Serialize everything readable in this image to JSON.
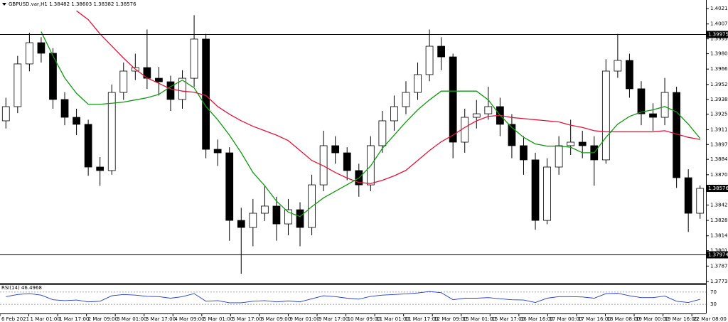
{
  "chart_data": [
    {
      "type": "candlestick",
      "title": "GBPUSD.var,H1 1.38482 1.38603 1.38382 1.38576",
      "open": [
        1.3919,
        1.39319,
        1.39707,
        1.399,
        1.39804,
        1.39384,
        1.39222,
        1.39158,
        1.3877,
        1.38738,
        1.39448,
        1.39642,
        1.39674,
        1.39577,
        1.39545,
        1.39384,
        1.39577,
        1.39933,
        1.38931,
        1.38899,
        1.38285,
        1.38221,
        1.3835,
        1.38415,
        1.38253,
        1.38382,
        1.38221,
        1.38608,
        1.38964,
        1.38899,
        1.38738,
        1.38608,
        1.38964,
        1.3919,
        1.39319,
        1.39448,
        1.3961,
        1.39868,
        1.39771,
        1.38996,
        1.39222,
        1.39254,
        1.39319,
        1.39158,
        1.38964,
        1.38835,
        1.38285,
        1.3877,
        1.38964,
        1.38996,
        1.38964,
        1.38835,
        1.39642,
        1.39739,
        1.39481,
        1.39254,
        1.39222,
        1.39448,
        1.38673,
        1.3835
      ],
      "high": [
        1.394,
        1.3978,
        1.3999,
        1.3995,
        1.3985,
        1.3945,
        1.393,
        1.392,
        1.3886,
        1.3952,
        1.3972,
        1.398,
        1.4002,
        1.3968,
        1.396,
        1.3965,
        1.4015,
        1.3998,
        1.3902,
        1.3895,
        1.384,
        1.3848,
        1.386,
        1.385,
        1.3848,
        1.3845,
        1.387,
        1.391,
        1.3905,
        1.3895,
        1.388,
        1.3905,
        1.3928,
        1.3942,
        1.3955,
        1.3972,
        1.4002,
        1.3995,
        1.398,
        1.393,
        1.3938,
        1.395,
        1.394,
        1.3925,
        1.3905,
        1.389,
        1.3885,
        1.3905,
        1.392,
        1.391,
        1.3905,
        1.3975,
        1.3998,
        1.398,
        1.3955,
        1.3935,
        1.3958,
        1.395,
        1.3875,
        1.38603
      ],
      "low": [
        1.3912,
        1.3926,
        1.3964,
        1.3972,
        1.393,
        1.3915,
        1.3906,
        1.3869,
        1.386,
        1.387,
        1.3938,
        1.3956,
        1.3948,
        1.3942,
        1.3928,
        1.393,
        1.395,
        1.3885,
        1.3878,
        1.381,
        1.378,
        1.3805,
        1.3828,
        1.381,
        1.3815,
        1.3805,
        1.3815,
        1.3855,
        1.388,
        1.3865,
        1.385,
        1.3855,
        1.389,
        1.391,
        1.3925,
        1.3938,
        1.3955,
        1.3965,
        1.3885,
        1.389,
        1.3912,
        1.392,
        1.3905,
        1.3885,
        1.387,
        1.382,
        1.3825,
        1.387,
        1.3888,
        1.3885,
        1.386,
        1.388,
        1.3958,
        1.394,
        1.3915,
        1.391,
        1.3915,
        1.3858,
        1.3818,
        1.383
      ],
      "close": [
        1.39319,
        1.39707,
        1.399,
        1.39804,
        1.39384,
        1.39222,
        1.39158,
        1.3877,
        1.38738,
        1.39448,
        1.39642,
        1.39674,
        1.39577,
        1.39545,
        1.39384,
        1.39577,
        1.39933,
        1.38931,
        1.38899,
        1.38285,
        1.38221,
        1.3835,
        1.38415,
        1.38253,
        1.38382,
        1.38221,
        1.38608,
        1.38964,
        1.38899,
        1.38738,
        1.38608,
        1.38964,
        1.3919,
        1.39319,
        1.39448,
        1.3961,
        1.39868,
        1.39771,
        1.38996,
        1.39222,
        1.39254,
        1.39319,
        1.39158,
        1.38964,
        1.38835,
        1.38285,
        1.3877,
        1.38964,
        1.38996,
        1.38964,
        1.38835,
        1.39642,
        1.39739,
        1.39481,
        1.39254,
        1.39222,
        1.39448,
        1.38673,
        1.3835,
        1.38576
      ],
      "up_color": "#ffffff",
      "down_color": "#000000",
      "wick_color": "#000000",
      "series": [
        {
          "color": "#e0143c",
          "values": [
            null,
            null,
            null,
            null,
            null,
            null,
            1.4019,
            1.4011,
            1.3998,
            1.3987,
            1.3976,
            1.3966,
            1.3958,
            1.3953,
            1.3948,
            1.3946,
            1.3945,
            1.3942,
            1.3932,
            1.3925,
            1.3919,
            1.3914,
            1.391,
            1.3906,
            1.3901,
            1.3892,
            1.3883,
            1.3878,
            1.3872,
            1.3867,
            1.3863,
            1.3862,
            1.3865,
            1.3869,
            1.3874,
            1.3883,
            1.3892,
            1.39,
            1.3906,
            1.3913,
            1.3919,
            1.3923,
            1.3924,
            1.3922,
            1.3921,
            1.392,
            1.3919,
            1.3918,
            1.3915,
            1.3913,
            1.391,
            1.3909,
            1.3909,
            1.3909,
            1.3909,
            1.3909,
            1.391,
            1.3907,
            1.3904,
            1.3902
          ]
        },
        {
          "color": "#139613",
          "values": [
            null,
            null,
            null,
            1.4,
            1.3978,
            1.3958,
            1.3944,
            1.3934,
            1.3934,
            1.3935,
            1.3936,
            1.3938,
            1.394,
            1.3943,
            1.395,
            1.3956,
            1.3949,
            1.3932,
            1.392,
            1.3906,
            1.389,
            1.3872,
            1.386,
            1.3846,
            1.3836,
            1.3832,
            1.3841,
            1.3849,
            1.3855,
            1.3861,
            1.3867,
            1.3878,
            1.3894,
            1.3906,
            1.3918,
            1.3929,
            1.3938,
            1.3946,
            1.3946,
            1.3946,
            1.3946,
            1.3938,
            1.3924,
            1.3913,
            1.3904,
            1.3898,
            1.3896,
            1.3896,
            1.3895,
            1.389,
            1.389,
            1.3904,
            1.3916,
            1.3923,
            1.3927,
            1.3929,
            1.3932,
            1.3927,
            1.3916,
            1.3903
          ]
        }
      ],
      "hlines": [
        1.39975,
        1.37974
      ],
      "last_price": 1.38576,
      "ylim": [
        1.37717,
        1.40288
      ],
      "yticks": [
        {
          "value": 1.4021,
          "label": "1.40210"
        },
        {
          "value": 1.4007,
          "label": "1.40070"
        },
        1.39935,
        {
          "value": 1.398,
          "label": "1.39800"
        },
        {
          "value": 1.3966,
          "label": "1.39660"
        },
        {
          "value": 1.3952,
          "label": "1.39520"
        },
        1.39385,
        {
          "value": 1.3925,
          "label": "1.39250"
        },
        {
          "value": 1.3911,
          "label": "1.39110"
        },
        1.38975,
        {
          "value": 1.3884,
          "label": "1.38840"
        },
        {
          "value": 1.387,
          "label": "1.38700"
        },
        1.38565,
        1.38425,
        1.38285,
        1.38145,
        {
          "value": 1.3801,
          "label": "1.38010"
        },
        {
          "value": 1.3787,
          "label": "1.37870"
        },
        {
          "value": 1.3773,
          "label": "1.37730"
        }
      ],
      "xlim": [
        0,
        60
      ],
      "xticks": [
        {
          "value": 0,
          "label": "6 Feb 2021"
        },
        {
          "value": 2.45,
          "label": "1 Mar 01:00"
        },
        {
          "value": 4.9,
          "label": "1 Mar 17:00"
        },
        {
          "value": 7.35,
          "label": "2 Mar 09:00"
        },
        {
          "value": 9.8,
          "label": "3 Mar 01:00"
        },
        {
          "value": 12.25,
          "label": "3 Mar 17:00"
        },
        {
          "value": 14.7,
          "label": "4 Mar 09:00"
        },
        {
          "value": 17.15,
          "label": "5 Mar 01:00"
        },
        {
          "value": 19.6,
          "label": "5 Mar 17:00"
        },
        {
          "value": 22.05,
          "label": "8 Mar 09:00"
        },
        {
          "value": 24.5,
          "label": "9 Mar 01:00"
        },
        {
          "value": 26.95,
          "label": "9 Mar 17:00"
        },
        {
          "value": 29.4,
          "label": "10 Mar 09:00"
        },
        {
          "value": 31.85,
          "label": "11 Mar 01:00"
        },
        {
          "value": 34.3,
          "label": "11 Mar 17:00"
        },
        {
          "value": 36.75,
          "label": "12 Mar 09:00"
        },
        {
          "value": 39.2,
          "label": "15 Mar 01:00"
        },
        {
          "value": 41.65,
          "label": "15 Mar 17:00"
        },
        {
          "value": 44.1,
          "label": "16 Mar 16:00"
        },
        {
          "value": 46.55,
          "label": "17 Mar 00:00"
        },
        {
          "value": 49,
          "label": "17 Mar 16:00"
        },
        {
          "value": 51.45,
          "label": "18 Mar 08:00"
        },
        {
          "value": 53.9,
          "label": "19 Mar 00:00"
        },
        {
          "value": 56.35,
          "label": "19 Mar 16:00"
        },
        {
          "value": 58.8,
          "label": "22 Mar 08:00"
        }
      ]
    },
    {
      "type": "line",
      "title": "RSI(14) 46.4968",
      "color": "#2038c8",
      "values": [
        55,
        62,
        65,
        60,
        45,
        42,
        44,
        38,
        40,
        58,
        62,
        60,
        56,
        55,
        50,
        55,
        65,
        40,
        42,
        35,
        35,
        40,
        42,
        38,
        41,
        38,
        48,
        58,
        55,
        50,
        47,
        56,
        60,
        62,
        64,
        67,
        72,
        68,
        45,
        50,
        50,
        52,
        48,
        45,
        44,
        36,
        50,
        55,
        55,
        54,
        50,
        65,
        66,
        58,
        52,
        52,
        57,
        40,
        36,
        46.4968
      ],
      "ylim": [
        0,
        100
      ],
      "yticks": [
        30,
        70
      ]
    }
  ]
}
